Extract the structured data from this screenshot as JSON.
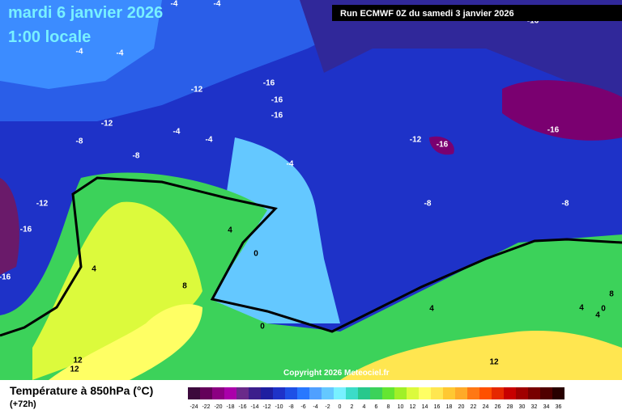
{
  "header": {
    "date": "mardi 6 janvier 2026",
    "time": "1:00 locale",
    "run": "Run ECMWF 0Z du samedi 3 janvier 2026"
  },
  "copyright": "Copyright 2026 Meteociel.fr",
  "footer": {
    "title": "Température à 850hPa (°C)",
    "lead": "(+72h)"
  },
  "legend": {
    "labels": [
      -24,
      -22,
      -20,
      -18,
      -16,
      -14,
      -12,
      -10,
      -8,
      -6,
      -4,
      -2,
      0,
      2,
      4,
      6,
      8,
      10,
      12,
      14,
      16,
      18,
      20,
      22,
      24,
      26,
      28,
      30,
      32,
      34,
      36
    ],
    "colors": [
      "#3c0a3c",
      "#64005a",
      "#8c0082",
      "#aa00aa",
      "#6a2a8a",
      "#3c1e8c",
      "#1e1ea0",
      "#1e32c8",
      "#1e50e6",
      "#2878ff",
      "#50a0ff",
      "#64c8ff",
      "#78f0ff",
      "#3cdcc8",
      "#28c88c",
      "#3cd25a",
      "#64e632",
      "#a0f028",
      "#dcfa3c",
      "#ffff64",
      "#ffe650",
      "#ffc832",
      "#ffaa28",
      "#ff7814",
      "#ff5000",
      "#e62800",
      "#c80000",
      "#a00000",
      "#780000",
      "#500000",
      "#280000"
    ]
  },
  "contour_labels": [
    -4,
    -4,
    -16,
    -4,
    -4,
    -16,
    -12,
    -16,
    -16,
    -12,
    -4,
    -4,
    -8,
    -12,
    -16,
    -16,
    -8,
    -4,
    -12,
    -8,
    -8,
    -16,
    4,
    0,
    4,
    -16,
    8,
    8,
    0,
    4,
    4,
    4,
    0,
    12,
    12,
    12
  ]
}
